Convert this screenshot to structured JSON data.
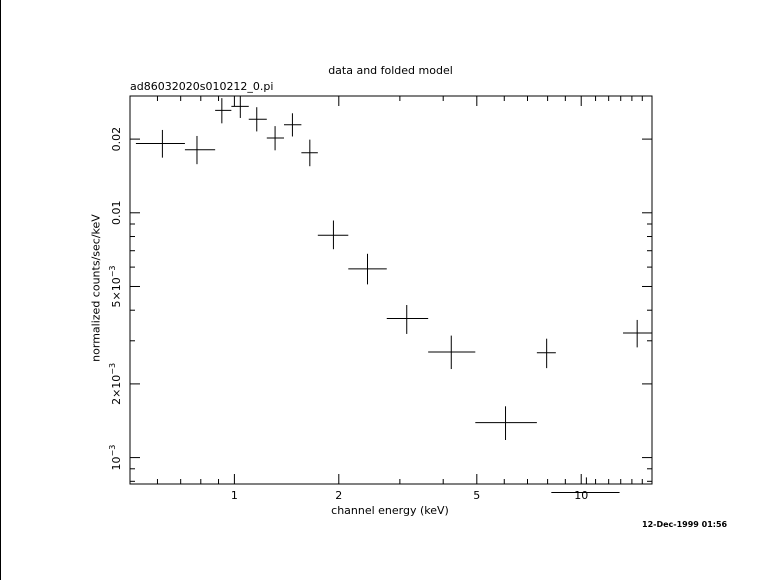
{
  "chart_data": {
    "type": "scatter",
    "title": "data and folded model",
    "subtitle": "ad86032020s010212_0.pi",
    "xlabel": "channel energy (keV)",
    "ylabel": "normalized counts/sec/keV",
    "x_scale": "log",
    "y_scale": "log",
    "xlim": [
      0.5,
      16
    ],
    "ylim": [
      0.00078,
      0.03
    ],
    "x_ticks": [
      {
        "value": 1,
        "label": "1"
      },
      {
        "value": 2,
        "label": "2"
      },
      {
        "value": 5,
        "label": "5"
      },
      {
        "value": 10,
        "label": "10"
      }
    ],
    "y_ticks": [
      {
        "value": 0.001,
        "label": "10",
        "sup": "−3"
      },
      {
        "value": 0.002,
        "label": "2×10",
        "sup": "−3"
      },
      {
        "value": 0.005,
        "label": "5×10",
        "sup": "−3"
      },
      {
        "value": 0.01,
        "label": "0.01",
        "sup": ""
      },
      {
        "value": 0.02,
        "label": "0.02",
        "sup": ""
      }
    ],
    "grid": false,
    "series": [
      {
        "points": [
          {
            "x": 0.62,
            "xlo": 0.52,
            "xhi": 0.72,
            "y": 0.0192,
            "ylo": 0.0168,
            "yhi": 0.0218
          },
          {
            "x": 0.78,
            "xlo": 0.72,
            "xhi": 0.88,
            "y": 0.0181,
            "ylo": 0.0158,
            "yhi": 0.0206
          },
          {
            "x": 0.92,
            "xlo": 0.88,
            "xhi": 0.98,
            "y": 0.0262,
            "ylo": 0.0232,
            "yhi": 0.0294
          },
          {
            "x": 1.04,
            "xlo": 0.98,
            "xhi": 1.1,
            "y": 0.0272,
            "ylo": 0.0244,
            "yhi": 0.0302
          },
          {
            "x": 1.16,
            "xlo": 1.1,
            "xhi": 1.24,
            "y": 0.0241,
            "ylo": 0.0215,
            "yhi": 0.027
          },
          {
            "x": 1.31,
            "xlo": 1.24,
            "xhi": 1.39,
            "y": 0.0202,
            "ylo": 0.018,
            "yhi": 0.0226
          },
          {
            "x": 1.47,
            "xlo": 1.39,
            "xhi": 1.56,
            "y": 0.0229,
            "ylo": 0.0205,
            "yhi": 0.0255
          },
          {
            "x": 1.65,
            "xlo": 1.56,
            "xhi": 1.74,
            "y": 0.0176,
            "ylo": 0.0155,
            "yhi": 0.0199
          },
          {
            "x": 1.93,
            "xlo": 1.74,
            "xhi": 2.13,
            "y": 0.0081,
            "ylo": 0.0071,
            "yhi": 0.0093
          },
          {
            "x": 2.42,
            "xlo": 2.13,
            "xhi": 2.75,
            "y": 0.0059,
            "ylo": 0.0051,
            "yhi": 0.0068
          },
          {
            "x": 3.14,
            "xlo": 2.75,
            "xhi": 3.62,
            "y": 0.0037,
            "ylo": 0.0032,
            "yhi": 0.0042
          },
          {
            "x": 4.22,
            "xlo": 3.62,
            "xhi": 4.95,
            "y": 0.0027,
            "ylo": 0.0023,
            "yhi": 0.00315
          },
          {
            "x": 6.05,
            "xlo": 4.95,
            "xhi": 7.45,
            "y": 0.00139,
            "ylo": 0.00118,
            "yhi": 0.00162
          },
          {
            "x": 7.95,
            "xlo": 7.45,
            "xhi": 8.45,
            "y": 0.00268,
            "ylo": 0.00232,
            "yhi": 0.00306
          },
          {
            "x": 10.35,
            "xlo": 8.2,
            "xhi": 12.9,
            "y": 0.00072,
            "ylo": 0.0006,
            "yhi": 0.00083
          },
          {
            "x": 14.5,
            "xlo": 13.2,
            "xhi": 16.0,
            "y": 0.00323,
            "ylo": 0.00282,
            "yhi": 0.00365
          }
        ]
      }
    ]
  },
  "timestamp": "12-Dec-1999 01:56"
}
